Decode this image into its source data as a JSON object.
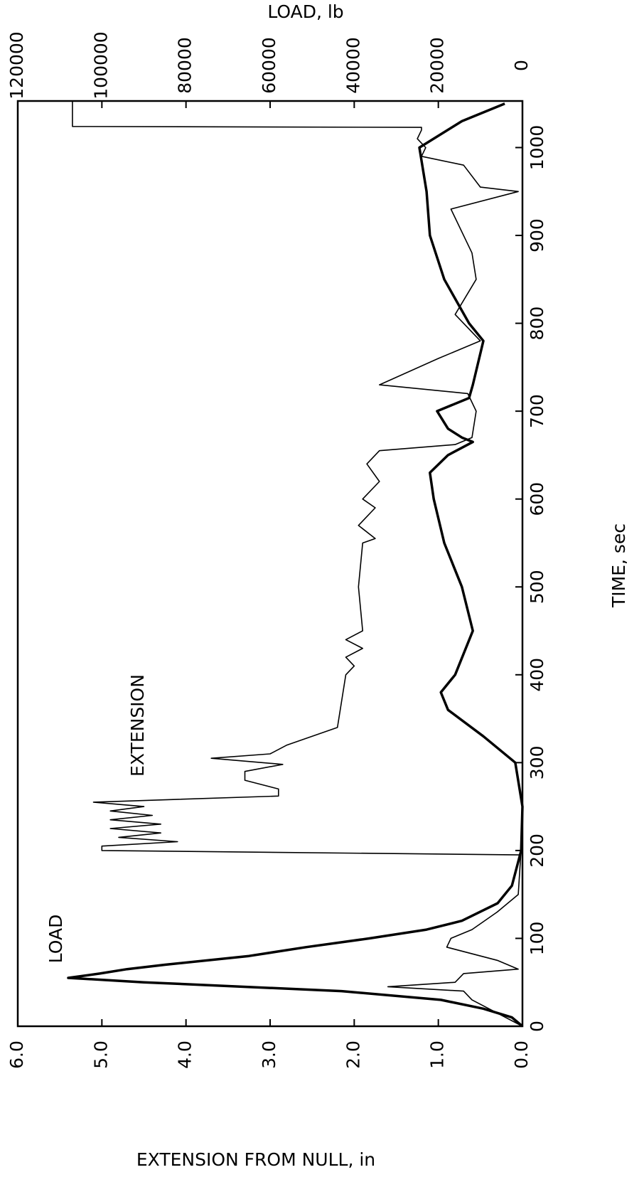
{
  "chart_data": {
    "type": "line",
    "x_label": "TIME, sec",
    "y_label": "EXTENSION FROM NULL, in",
    "y2_label": "LOAD, lb",
    "xlim": [
      0,
      1053
    ],
    "xticks": [
      0,
      100,
      200,
      300,
      400,
      500,
      600,
      700,
      800,
      900,
      1000
    ],
    "ylim": [
      0,
      6
    ],
    "yticks": [
      {
        "value": 0,
        "label": "0.0"
      },
      {
        "value": 1,
        "label": "1.0"
      },
      {
        "value": 2,
        "label": "2.0"
      },
      {
        "value": 3,
        "label": "3.0"
      },
      {
        "value": 4,
        "label": "4.0"
      },
      {
        "value": 5,
        "label": "5.0"
      },
      {
        "value": 6,
        "label": "6.0"
      }
    ],
    "y2lim": [
      0,
      120000
    ],
    "y2ticks": [
      0,
      20000,
      40000,
      60000,
      80000,
      100000,
      120000
    ],
    "series": [
      {
        "name": "LOAD",
        "axis": "y2",
        "color": "#000",
        "width": 3.5,
        "x": [
          0,
          10,
          20,
          30,
          40,
          50,
          55,
          60,
          65,
          70,
          80,
          90,
          100,
          110,
          120,
          140,
          160,
          200,
          250,
          300,
          330,
          360,
          380,
          400,
          450,
          500,
          550,
          600,
          630,
          650,
          665,
          670,
          680,
          700,
          715,
          730,
          780,
          800,
          850,
          900,
          950,
          1000,
          1030,
          1050
        ],
        "values": [
          0,
          2500,
          9300,
          19400,
          43000,
          90000,
          108000,
          100500,
          94000,
          85000,
          65000,
          51500,
          36300,
          22800,
          14400,
          5900,
          2500,
          300,
          0,
          1700,
          9300,
          17700,
          19400,
          16000,
          11800,
          14400,
          18600,
          21100,
          22000,
          17700,
          11800,
          14400,
          17700,
          20300,
          12700,
          11800,
          9300,
          12700,
          18600,
          22000,
          22800,
          24500,
          14400,
          4200
        ]
      },
      {
        "name": "EXTENSION",
        "color": "#000",
        "width": 1.6,
        "x": [
          0,
          30,
          40,
          45,
          50,
          60,
          65,
          75,
          90,
          100,
          110,
          130,
          150,
          195,
          200,
          205,
          210,
          215,
          220,
          225,
          230,
          235,
          240,
          245,
          250,
          255,
          262,
          270,
          280,
          290,
          298,
          305,
          310,
          320,
          340,
          400,
          410,
          420,
          430,
          440,
          450,
          500,
          550,
          555,
          570,
          590,
          600,
          620,
          640,
          655,
          662,
          670,
          700,
          720,
          730,
          760,
          780,
          810,
          850,
          880,
          930,
          950,
          955,
          980,
          990,
          1000,
          1010,
          1020,
          1023,
          1024,
          1053
        ],
        "values": [
          0,
          0.6,
          0.7,
          1.6,
          0.8,
          0.7,
          0.05,
          0.3,
          0.9,
          0.85,
          0.6,
          0.3,
          0.05,
          0.02,
          5.0,
          5.0,
          4.1,
          4.8,
          4.3,
          4.9,
          4.3,
          4.9,
          4.4,
          4.9,
          4.5,
          5.1,
          2.9,
          2.9,
          3.3,
          3.3,
          2.85,
          3.7,
          3.0,
          2.8,
          2.2,
          2.1,
          2.0,
          2.1,
          1.9,
          2.1,
          1.9,
          1.95,
          1.9,
          1.75,
          1.95,
          1.75,
          1.9,
          1.7,
          1.85,
          1.7,
          0.8,
          0.6,
          0.55,
          0.65,
          1.7,
          1.0,
          0.5,
          0.8,
          0.55,
          0.6,
          0.85,
          0.05,
          0.5,
          0.7,
          1.2,
          1.15,
          1.25,
          1.2,
          1.2,
          5.35,
          5.35
        ]
      }
    ]
  }
}
